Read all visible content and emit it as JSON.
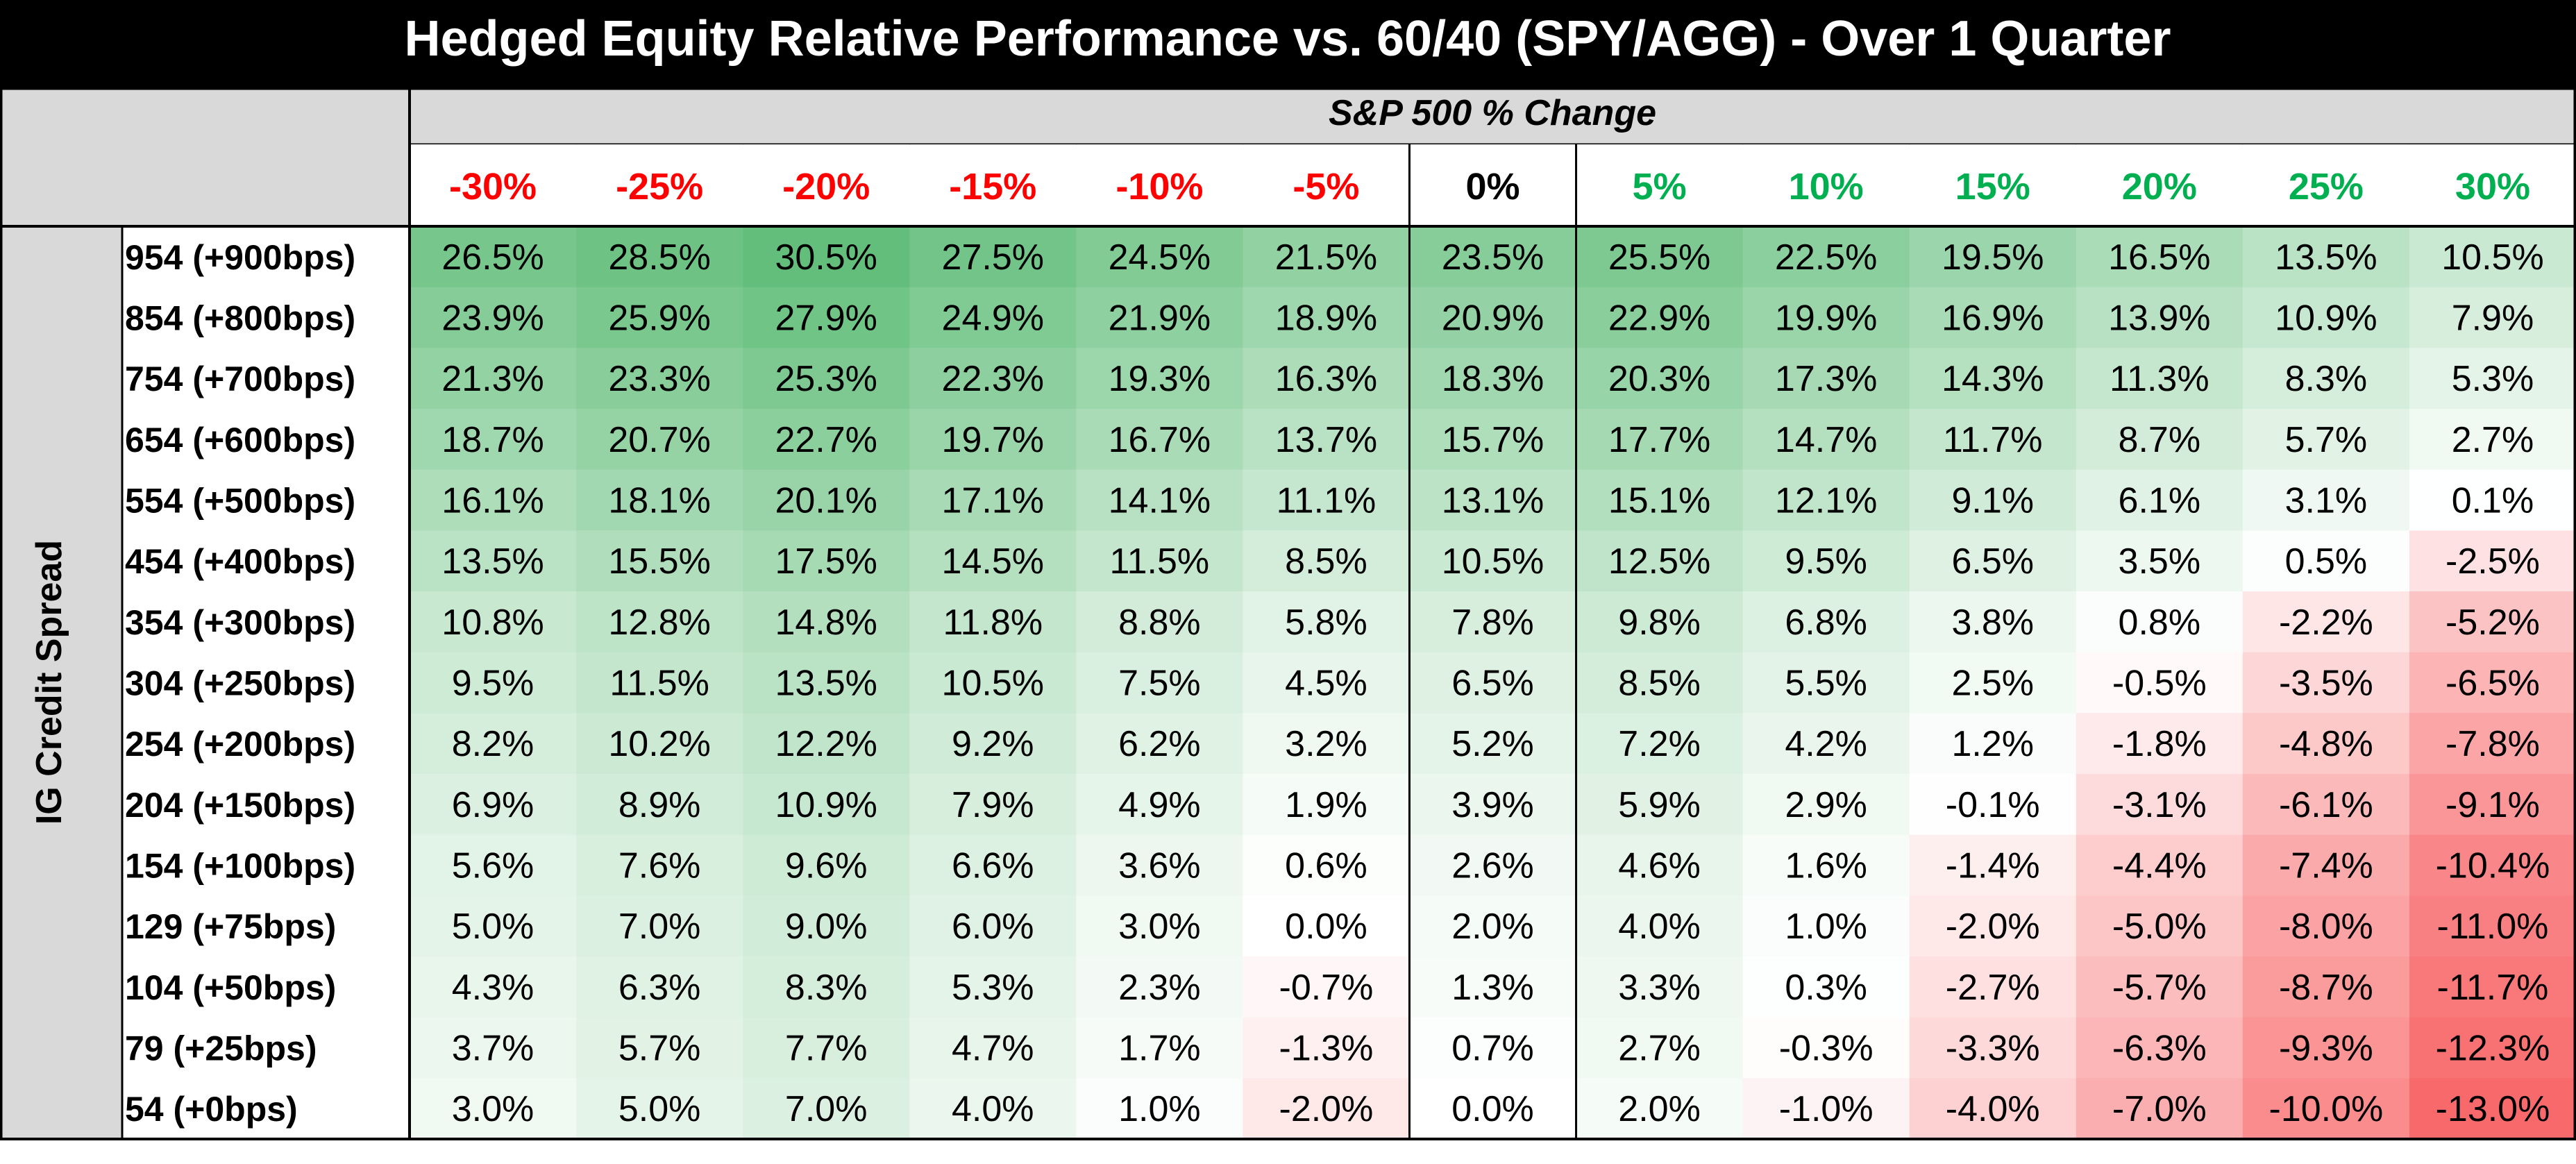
{
  "chart_data": {
    "type": "heatmap",
    "title": "Hedged Equity Relative Performance vs. 60/40 (SPY/AGG) - Over 1 Quarter",
    "xlabel": "S&P 500 % Change",
    "ylabel": "IG Credit Spread",
    "columns": [
      "-30%",
      "-25%",
      "-20%",
      "-15%",
      "-10%",
      "-5%",
      "0%",
      "5%",
      "10%",
      "15%",
      "20%",
      "25%",
      "30%"
    ],
    "rows": [
      "954 (+900bps)",
      "854 (+800bps)",
      "754 (+700bps)",
      "654 (+600bps)",
      "554 (+500bps)",
      "454 (+400bps)",
      "354 (+300bps)",
      "304 (+250bps)",
      "254 (+200bps)",
      "204 (+150bps)",
      "154 (+100bps)",
      "129 (+75bps)",
      "104 (+50bps)",
      "79 (+25bps)",
      "54 (+0bps)"
    ],
    "values": [
      [
        26.5,
        28.5,
        30.5,
        27.5,
        24.5,
        21.5,
        23.5,
        25.5,
        22.5,
        19.5,
        16.5,
        13.5,
        10.5
      ],
      [
        23.9,
        25.9,
        27.9,
        24.9,
        21.9,
        18.9,
        20.9,
        22.9,
        19.9,
        16.9,
        13.9,
        10.9,
        7.9
      ],
      [
        21.3,
        23.3,
        25.3,
        22.3,
        19.3,
        16.3,
        18.3,
        20.3,
        17.3,
        14.3,
        11.3,
        8.3,
        5.3
      ],
      [
        18.7,
        20.7,
        22.7,
        19.7,
        16.7,
        13.7,
        15.7,
        17.7,
        14.7,
        11.7,
        8.7,
        5.7,
        2.7
      ],
      [
        16.1,
        18.1,
        20.1,
        17.1,
        14.1,
        11.1,
        13.1,
        15.1,
        12.1,
        9.1,
        6.1,
        3.1,
        0.1
      ],
      [
        13.5,
        15.5,
        17.5,
        14.5,
        11.5,
        8.5,
        10.5,
        12.5,
        9.5,
        6.5,
        3.5,
        0.5,
        -2.5
      ],
      [
        10.8,
        12.8,
        14.8,
        11.8,
        8.8,
        5.8,
        7.8,
        9.8,
        6.8,
        3.8,
        0.8,
        -2.2,
        -5.2
      ],
      [
        9.5,
        11.5,
        13.5,
        10.5,
        7.5,
        4.5,
        6.5,
        8.5,
        5.5,
        2.5,
        -0.5,
        -3.5,
        -6.5
      ],
      [
        8.2,
        10.2,
        12.2,
        9.2,
        6.2,
        3.2,
        5.2,
        7.2,
        4.2,
        1.2,
        -1.8,
        -4.8,
        -7.8
      ],
      [
        6.9,
        8.9,
        10.9,
        7.9,
        4.9,
        1.9,
        3.9,
        5.9,
        2.9,
        -0.1,
        -3.1,
        -6.1,
        -9.1
      ],
      [
        5.6,
        7.6,
        9.6,
        6.6,
        3.6,
        0.6,
        2.6,
        4.6,
        1.6,
        -1.4,
        -4.4,
        -7.4,
        -10.4
      ],
      [
        5.0,
        7.0,
        9.0,
        6.0,
        3.0,
        0.0,
        2.0,
        4.0,
        1.0,
        -2.0,
        -5.0,
        -8.0,
        -11.0
      ],
      [
        4.3,
        6.3,
        8.3,
        5.3,
        2.3,
        -0.7,
        1.3,
        3.3,
        0.3,
        -2.7,
        -5.7,
        -8.7,
        -11.7
      ],
      [
        3.7,
        5.7,
        7.7,
        4.7,
        1.7,
        -1.3,
        0.7,
        2.7,
        -0.3,
        -3.3,
        -6.3,
        -9.3,
        -12.3
      ],
      [
        3.0,
        5.0,
        7.0,
        4.0,
        1.0,
        -2.0,
        0.0,
        2.0,
        -1.0,
        -4.0,
        -7.0,
        -10.0,
        -13.0
      ]
    ],
    "value_format": "percent_1dp",
    "colors": {
      "positive_max": "#63be7b",
      "neutral": "#ffffff",
      "negative_max": "#f8696b",
      "column_negative_label": "#ff0000",
      "column_zero_label": "#000000",
      "column_positive_label": "#00b050",
      "title_bar": "#000000",
      "title_text": "#ffffff",
      "header_fill": "#d9d9d9"
    }
  }
}
